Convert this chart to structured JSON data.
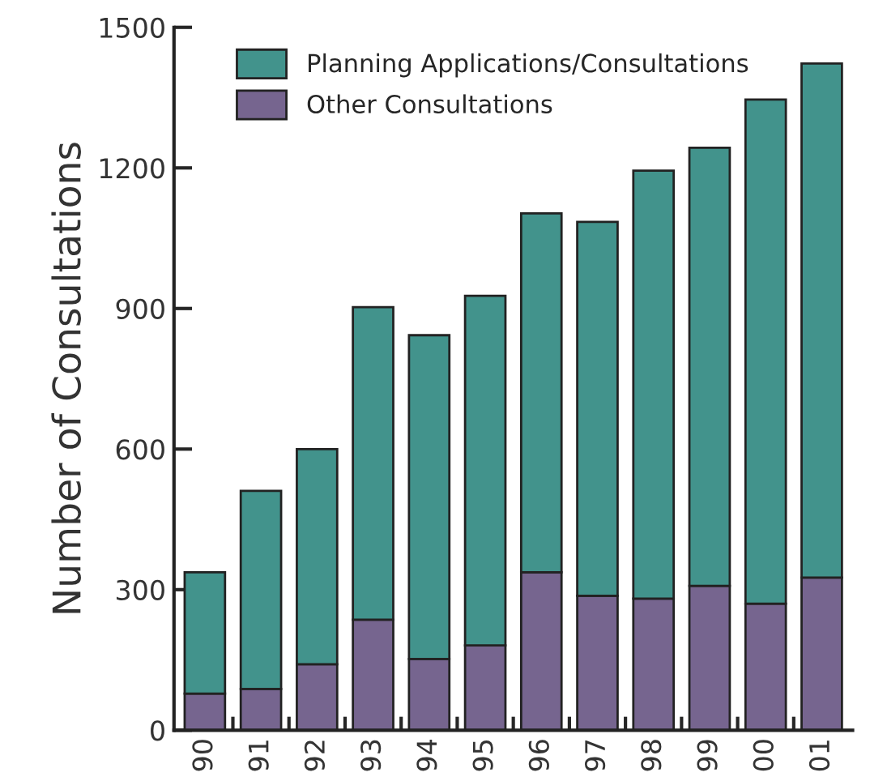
{
  "chart_data": {
    "type": "bar",
    "stacked": true,
    "ylabel": "Number of Consultations",
    "categories": [
      "90",
      "91",
      "92",
      "93",
      "94",
      "95",
      "96",
      "97",
      "98",
      "99",
      "00",
      "01"
    ],
    "series": [
      {
        "name": "Other Consultations",
        "color": "#76658f",
        "values": [
          78,
          88,
          141,
          236,
          152,
          181,
          337,
          287,
          281,
          308,
          270,
          326
        ]
      },
      {
        "name": "Planning Applications/Consultations",
        "color": "#42938c",
        "values": [
          259,
          423,
          459,
          667,
          691,
          746,
          766,
          798,
          913,
          935,
          1076,
          1097
        ]
      }
    ],
    "ylim": [
      0,
      1500
    ],
    "yticks": [
      0,
      300,
      600,
      900,
      1200,
      1500
    ],
    "grid": false,
    "legend": "top"
  }
}
